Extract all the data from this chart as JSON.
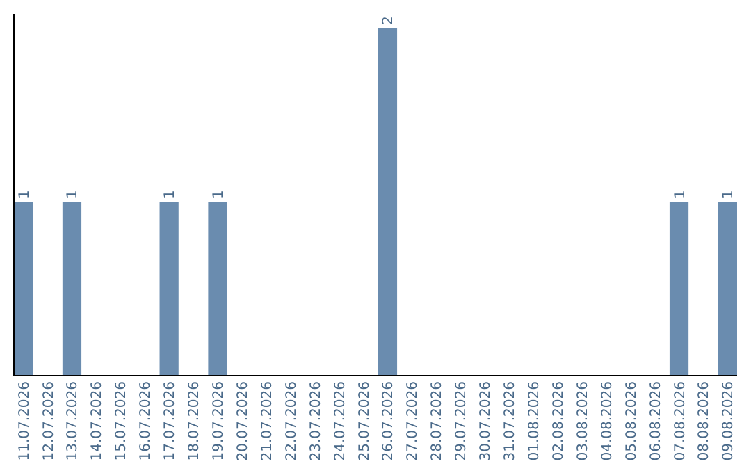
{
  "chart_data": {
    "type": "bar",
    "categories": [
      "11.07.2026",
      "12.07.2026",
      "13.07.2026",
      "14.07.2026",
      "15.07.2026",
      "16.07.2026",
      "17.07.2026",
      "18.07.2026",
      "19.07.2026",
      "20.07.2026",
      "21.07.2026",
      "22.07.2026",
      "23.07.2026",
      "24.07.2026",
      "25.07.2026",
      "26.07.2026",
      "27.07.2026",
      "28.07.2026",
      "29.07.2026",
      "30.07.2026",
      "31.07.2026",
      "01.08.2026",
      "02.08.2026",
      "03.08.2026",
      "04.08.2026",
      "05.08.2026",
      "06.08.2026",
      "07.08.2026",
      "08.08.2026",
      "09.08.2026"
    ],
    "values": [
      1,
      0,
      1,
      0,
      0,
      0,
      1,
      0,
      1,
      0,
      0,
      0,
      0,
      0,
      0,
      2,
      0,
      0,
      0,
      0,
      0,
      0,
      0,
      0,
      0,
      0,
      0,
      1,
      0,
      1
    ],
    "value_labels": [
      "1",
      null,
      "1",
      null,
      null,
      null,
      "1",
      null,
      "1",
      null,
      null,
      null,
      null,
      null,
      null,
      "2",
      null,
      null,
      null,
      null,
      null,
      null,
      null,
      null,
      null,
      null,
      null,
      "1",
      null,
      "1"
    ],
    "color": "#6a8caf",
    "tick_labels": "x"
  }
}
